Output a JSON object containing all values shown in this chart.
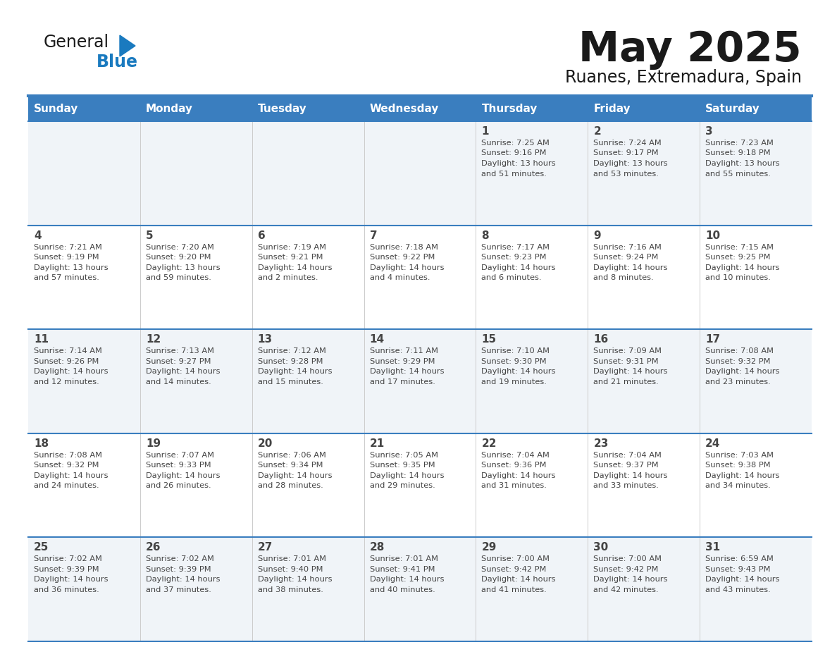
{
  "title": "May 2025",
  "subtitle": "Ruanes, Extremadura, Spain",
  "days_of_week": [
    "Sunday",
    "Monday",
    "Tuesday",
    "Wednesday",
    "Thursday",
    "Friday",
    "Saturday"
  ],
  "header_bg": "#3a7ebf",
  "header_text": "#ffffff",
  "cell_bg_odd": "#f0f4f8",
  "cell_bg_even": "#ffffff",
  "cell_border": "#3a7ebf",
  "text_color": "#444444",
  "title_color": "#1a1a1a",
  "logo_color1": "#1a1a1a",
  "logo_color2": "#1a7abf",
  "logo_triangle_color": "#1a7abf",
  "calendar_data": [
    [
      null,
      null,
      null,
      null,
      {
        "day": "1",
        "sunrise": "7:25 AM",
        "sunset": "9:16 PM",
        "daylight": "13 hours",
        "daylight2": "and 51 minutes."
      },
      {
        "day": "2",
        "sunrise": "7:24 AM",
        "sunset": "9:17 PM",
        "daylight": "13 hours",
        "daylight2": "and 53 minutes."
      },
      {
        "day": "3",
        "sunrise": "7:23 AM",
        "sunset": "9:18 PM",
        "daylight": "13 hours",
        "daylight2": "and 55 minutes."
      }
    ],
    [
      {
        "day": "4",
        "sunrise": "7:21 AM",
        "sunset": "9:19 PM",
        "daylight": "13 hours",
        "daylight2": "and 57 minutes."
      },
      {
        "day": "5",
        "sunrise": "7:20 AM",
        "sunset": "9:20 PM",
        "daylight": "13 hours",
        "daylight2": "and 59 minutes."
      },
      {
        "day": "6",
        "sunrise": "7:19 AM",
        "sunset": "9:21 PM",
        "daylight": "14 hours",
        "daylight2": "and 2 minutes."
      },
      {
        "day": "7",
        "sunrise": "7:18 AM",
        "sunset": "9:22 PM",
        "daylight": "14 hours",
        "daylight2": "and 4 minutes."
      },
      {
        "day": "8",
        "sunrise": "7:17 AM",
        "sunset": "9:23 PM",
        "daylight": "14 hours",
        "daylight2": "and 6 minutes."
      },
      {
        "day": "9",
        "sunrise": "7:16 AM",
        "sunset": "9:24 PM",
        "daylight": "14 hours",
        "daylight2": "and 8 minutes."
      },
      {
        "day": "10",
        "sunrise": "7:15 AM",
        "sunset": "9:25 PM",
        "daylight": "14 hours",
        "daylight2": "and 10 minutes."
      }
    ],
    [
      {
        "day": "11",
        "sunrise": "7:14 AM",
        "sunset": "9:26 PM",
        "daylight": "14 hours",
        "daylight2": "and 12 minutes."
      },
      {
        "day": "12",
        "sunrise": "7:13 AM",
        "sunset": "9:27 PM",
        "daylight": "14 hours",
        "daylight2": "and 14 minutes."
      },
      {
        "day": "13",
        "sunrise": "7:12 AM",
        "sunset": "9:28 PM",
        "daylight": "14 hours",
        "daylight2": "and 15 minutes."
      },
      {
        "day": "14",
        "sunrise": "7:11 AM",
        "sunset": "9:29 PM",
        "daylight": "14 hours",
        "daylight2": "and 17 minutes."
      },
      {
        "day": "15",
        "sunrise": "7:10 AM",
        "sunset": "9:30 PM",
        "daylight": "14 hours",
        "daylight2": "and 19 minutes."
      },
      {
        "day": "16",
        "sunrise": "7:09 AM",
        "sunset": "9:31 PM",
        "daylight": "14 hours",
        "daylight2": "and 21 minutes."
      },
      {
        "day": "17",
        "sunrise": "7:08 AM",
        "sunset": "9:32 PM",
        "daylight": "14 hours",
        "daylight2": "and 23 minutes."
      }
    ],
    [
      {
        "day": "18",
        "sunrise": "7:08 AM",
        "sunset": "9:32 PM",
        "daylight": "14 hours",
        "daylight2": "and 24 minutes."
      },
      {
        "day": "19",
        "sunrise": "7:07 AM",
        "sunset": "9:33 PM",
        "daylight": "14 hours",
        "daylight2": "and 26 minutes."
      },
      {
        "day": "20",
        "sunrise": "7:06 AM",
        "sunset": "9:34 PM",
        "daylight": "14 hours",
        "daylight2": "and 28 minutes."
      },
      {
        "day": "21",
        "sunrise": "7:05 AM",
        "sunset": "9:35 PM",
        "daylight": "14 hours",
        "daylight2": "and 29 minutes."
      },
      {
        "day": "22",
        "sunrise": "7:04 AM",
        "sunset": "9:36 PM",
        "daylight": "14 hours",
        "daylight2": "and 31 minutes."
      },
      {
        "day": "23",
        "sunrise": "7:04 AM",
        "sunset": "9:37 PM",
        "daylight": "14 hours",
        "daylight2": "and 33 minutes."
      },
      {
        "day": "24",
        "sunrise": "7:03 AM",
        "sunset": "9:38 PM",
        "daylight": "14 hours",
        "daylight2": "and 34 minutes."
      }
    ],
    [
      {
        "day": "25",
        "sunrise": "7:02 AM",
        "sunset": "9:39 PM",
        "daylight": "14 hours",
        "daylight2": "and 36 minutes."
      },
      {
        "day": "26",
        "sunrise": "7:02 AM",
        "sunset": "9:39 PM",
        "daylight": "14 hours",
        "daylight2": "and 37 minutes."
      },
      {
        "day": "27",
        "sunrise": "7:01 AM",
        "sunset": "9:40 PM",
        "daylight": "14 hours",
        "daylight2": "and 38 minutes."
      },
      {
        "day": "28",
        "sunrise": "7:01 AM",
        "sunset": "9:41 PM",
        "daylight": "14 hours",
        "daylight2": "and 40 minutes."
      },
      {
        "day": "29",
        "sunrise": "7:00 AM",
        "sunset": "9:42 PM",
        "daylight": "14 hours",
        "daylight2": "and 41 minutes."
      },
      {
        "day": "30",
        "sunrise": "7:00 AM",
        "sunset": "9:42 PM",
        "daylight": "14 hours",
        "daylight2": "and 42 minutes."
      },
      {
        "day": "31",
        "sunrise": "6:59 AM",
        "sunset": "9:43 PM",
        "daylight": "14 hours",
        "daylight2": "and 43 minutes."
      }
    ]
  ]
}
